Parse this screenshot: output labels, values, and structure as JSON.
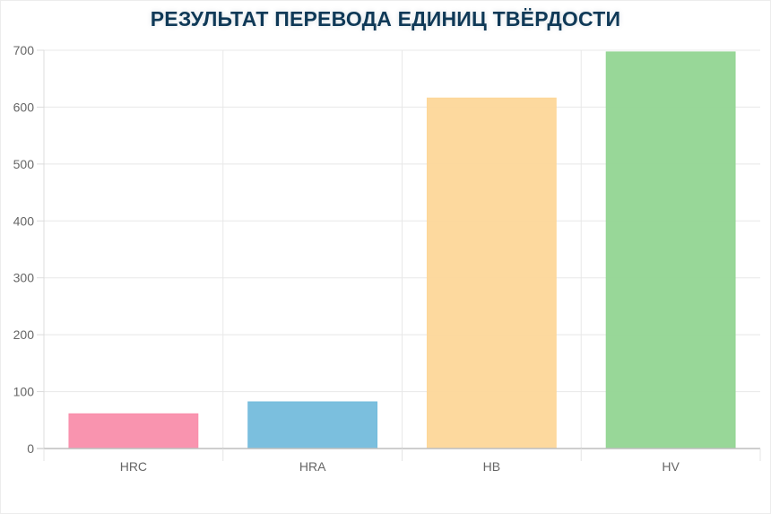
{
  "chart_data": {
    "type": "bar",
    "title": "РЕЗУЛЬТАТ ПЕРЕВОДА ЕДИНИЦ ТВЁРДОСТИ",
    "categories": [
      "HRC",
      "HRA",
      "HB",
      "HV"
    ],
    "values": [
      61,
      82,
      616,
      697
    ],
    "ylim": [
      0,
      700
    ],
    "yticks": [
      0,
      100,
      200,
      300,
      400,
      500,
      600,
      700
    ],
    "grid": true,
    "legend": "none",
    "bar_colors": [
      "#f98eab",
      "#74bcdc",
      "#fdd799",
      "#92d592"
    ]
  }
}
